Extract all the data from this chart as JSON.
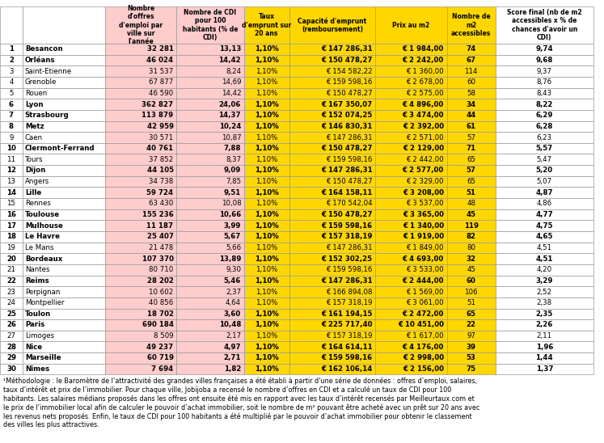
{
  "headers": [
    "",
    "",
    "Nombre\nd'offres\nd'emploi par\nville sur\nl'année",
    "Nombre de CDI\npour 100\nhabitants (% de\nCDI)",
    "Taux\nd'emprunt sur\n20 ans",
    "Capacité d'emprunt\n(remboursement)",
    "Prix au m2",
    "Nombre de\nm2\naccessibles",
    "Score final (nb de m2\naccessibles x % de\nchances d'avoir un\nCDI)"
  ],
  "rows": [
    [
      1,
      "Besancon",
      "32 281",
      "13,13",
      "1,10%",
      "€ 147 286,31",
      "€ 1 984,00",
      "74",
      "9,74"
    ],
    [
      2,
      "Orléans",
      "46 024",
      "14,42",
      "1,10%",
      "€ 150 478,27",
      "€ 2 242,00",
      "67",
      "9,68"
    ],
    [
      3,
      "Saint-Etienne",
      "31 537",
      "8,24",
      "1,10%",
      "€ 154 582,22",
      "€ 1 360,00",
      "114",
      "9,37"
    ],
    [
      4,
      "Grenoble",
      "67 877",
      "14,69",
      "1,10%",
      "€ 159 598,16",
      "€ 2 678,00",
      "60",
      "8,76"
    ],
    [
      5,
      "Rouen",
      "46 590",
      "14,42",
      "1,10%",
      "€ 150 478,27",
      "€ 2 575,00",
      "58",
      "8,43"
    ],
    [
      6,
      "Lyon",
      "362 827",
      "24,06",
      "1,10%",
      "€ 167 350,07",
      "€ 4 896,00",
      "34",
      "8,22"
    ],
    [
      7,
      "Strasbourg",
      "113 879",
      "14,37",
      "1,10%",
      "€ 152 074,25",
      "€ 3 474,00",
      "44",
      "6,29"
    ],
    [
      8,
      "Metz",
      "42 959",
      "10,24",
      "1,10%",
      "€ 146 830,31",
      "€ 2 392,00",
      "61",
      "6,28"
    ],
    [
      9,
      "Caen",
      "30 571",
      "10,87",
      "1,10%",
      "€ 147 286,31",
      "€ 2 571,00",
      "57",
      "6,23"
    ],
    [
      10,
      "Clermont-Ferrand",
      "40 761",
      "7,88",
      "1,10%",
      "€ 150 478,27",
      "€ 2 129,00",
      "71",
      "5,57"
    ],
    [
      11,
      "Tours",
      "37 852",
      "8,37",
      "1,10%",
      "€ 159 598,16",
      "€ 2 442,00",
      "65",
      "5,47"
    ],
    [
      12,
      "Dijon",
      "44 105",
      "9,09",
      "1,10%",
      "€ 147 286,31",
      "€ 2 577,00",
      "57",
      "5,20"
    ],
    [
      13,
      "Angers",
      "34 738",
      "7,85",
      "1,10%",
      "€ 150 478,27",
      "€ 2 329,00",
      "65",
      "5,07"
    ],
    [
      14,
      "Lille",
      "59 724",
      "9,51",
      "1,10%",
      "€ 164 158,11",
      "€ 3 208,00",
      "51",
      "4,87"
    ],
    [
      15,
      "Rennes",
      "63 430",
      "10,08",
      "1,10%",
      "€ 170 542,04",
      "€ 3 537,00",
      "48",
      "4,86"
    ],
    [
      16,
      "Toulouse",
      "155 236",
      "10,66",
      "1,10%",
      "€ 150 478,27",
      "€ 3 365,00",
      "45",
      "4,77"
    ],
    [
      17,
      "Mulhouse",
      "11 187",
      "3,99",
      "1,10%",
      "€ 159 598,16",
      "€ 1 340,00",
      "119",
      "4,75"
    ],
    [
      18,
      "Le Havre",
      "25 407",
      "5,67",
      "1,10%",
      "€ 157 318,19",
      "€ 1 919,00",
      "82",
      "4,65"
    ],
    [
      19,
      "Le Mans",
      "21 478",
      "5,66",
      "1,10%",
      "€ 147 286,31",
      "€ 1 849,00",
      "80",
      "4,51"
    ],
    [
      20,
      "Bordeaux",
      "107 370",
      "13,89",
      "1,10%",
      "€ 152 302,25",
      "€ 4 693,00",
      "32",
      "4,51"
    ],
    [
      21,
      "Nantes",
      "80 710",
      "9,30",
      "1,10%",
      "€ 159 598,16",
      "€ 3 533,00",
      "45",
      "4,20"
    ],
    [
      22,
      "Reims",
      "28 202",
      "5,46",
      "1,10%",
      "€ 147 286,31",
      "€ 2 444,00",
      "60",
      "3,29"
    ],
    [
      23,
      "Perpignan",
      "10 602",
      "2,37",
      "1,10%",
      "€ 166 894,08",
      "€ 1 569,00",
      "106",
      "2,52"
    ],
    [
      24,
      "Montpellier",
      "40 856",
      "4,64",
      "1,10%",
      "€ 157 318,19",
      "€ 3 061,00",
      "51",
      "2,38"
    ],
    [
      25,
      "Toulon",
      "18 702",
      "3,60",
      "1,10%",
      "€ 161 194,15",
      "€ 2 472,00",
      "65",
      "2,35"
    ],
    [
      26,
      "Paris",
      "690 184",
      "10,48",
      "1,10%",
      "€ 225 717,40",
      "€ 10 451,00",
      "22",
      "2,26"
    ],
    [
      27,
      "Limoges",
      "8 509",
      "2,17",
      "1,10%",
      "€ 157 318,19",
      "€ 1 617,00",
      "97",
      "2,11"
    ],
    [
      28,
      "Nice",
      "49 237",
      "4,97",
      "1,10%",
      "€ 164 614,11",
      "€ 4 176,00",
      "39",
      "1,96"
    ],
    [
      29,
      "Marseille",
      "60 719",
      "2,71",
      "1,10%",
      "€ 159 598,16",
      "€ 2 998,00",
      "53",
      "1,44"
    ],
    [
      30,
      "Nimes",
      "7 694",
      "1,82",
      "1,10%",
      "€ 162 106,14",
      "€ 2 156,00",
      "75",
      "1,37"
    ]
  ],
  "footnote": "¹Méthodologie : le Baromètre de l’attractivité des grandes villes françaises a été établi à partir d’une série de données : offres d’emploi, salaires,\ntaux d’intérêt et prix de l’immobilier. Pour chaque ville, Jobijoba a recensé le nombre d’offres en CDI et a calculé un taux de CDI pour 100\nhabitants. Les salaires médians proposés dans les offres ont ensuite été mis en rapport avec les taux d’intérêt recensés par Meilleurtaux.com et\nle prix de l’immobilier local afin de calculer le pouvoir d’achat immobilier, soit le nombre de m² pouvant être acheté avec un prêt sur 20 ans avec\nles revenus nets proposés. Enfin, le taux de CDI pour 100 habitants a été multiplié par le pouvoir d’achat immobilier pour obtenir le classement\ndes villes les plus attractives.",
  "col_colors": {
    "rank": "#FFFFFF",
    "city": "#FFFFFF",
    "jobs": "#FFCCCC",
    "cdi": "#FFCCCC",
    "rate": "#FFD700",
    "capacity": "#FFD700",
    "price": "#FFD700",
    "m2": "#FFD700",
    "score": "#FFFFFF"
  },
  "header_bg": "#FFD700",
  "row_bg_pink": "#FFCCCC",
  "row_bg_yellow": "#FFD700",
  "row_bg_white": "#FFFFFF",
  "bold_rows": [
    1,
    2,
    6,
    7,
    8,
    10,
    12,
    14,
    16,
    17,
    18,
    20,
    22,
    25,
    26,
    28,
    29,
    30
  ]
}
